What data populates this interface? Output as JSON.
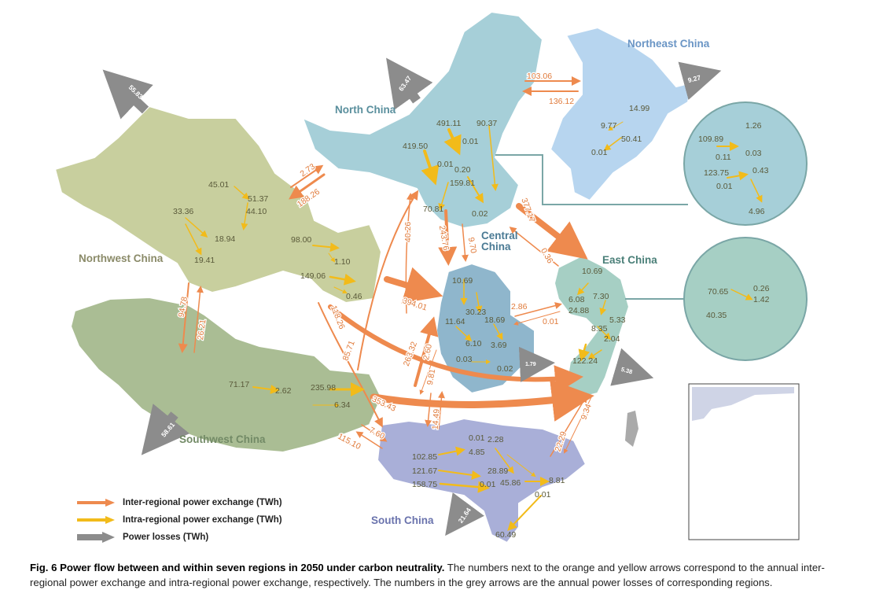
{
  "regions": {
    "northwest": "Northwest China",
    "north": "North China",
    "northeast": "Northeast China",
    "central": "Central China",
    "east": "East China",
    "southwest": "Southwest China",
    "south": "South China"
  },
  "losses": {
    "northwest": "55.83",
    "north": "63.47",
    "northeast": "9.27",
    "central": "1.79",
    "east": "5.38",
    "southwest": "58.61",
    "south": "21.64"
  },
  "inter_flows": {
    "nw_to_n": "2.73",
    "n_to_nw": "188.26",
    "n_to_ne": "103.06",
    "ne_to_n": "136.12",
    "n_to_e": "377.17",
    "e_to_n": "0.36",
    "n_to_c_a": "243.76",
    "n_to_c_b": "9.70",
    "c_to_n": "40.26",
    "nw_to_c": "394.01",
    "c_to_e": "2.86",
    "e_to_c": "0.01",
    "nw_to_sw": "94.78",
    "sw_to_nw": "26.21",
    "nw_to_s": "118.26",
    "sw_to_n": "85.71",
    "sw_to_c": "263.32",
    "c_to_sw": "2.60",
    "sw_to_e": "353.43",
    "sw_to_s": "7.60",
    "s_to_sw": "115.10",
    "c_to_s": "9.81",
    "s_to_c": "14.49",
    "s_to_e": "22.29",
    "e_to_s": "9.34"
  },
  "intra_flows": {
    "nw": [
      "45.01",
      "51.37",
      "44.10",
      "33.36",
      "18.94",
      "19.41",
      "98.00",
      "1.10",
      "149.06",
      "0.46"
    ],
    "n": [
      "491.11",
      "90.37",
      "419.50",
      "0.01",
      "0.01",
      "0.20",
      "159.81",
      "70.81",
      "0.02"
    ],
    "ne": [
      "14.99",
      "9.77",
      "50.41",
      "0.01"
    ],
    "n_inset": [
      "1.26",
      "109.89",
      "0.11",
      "0.03",
      "123.75",
      "0.43",
      "0.01",
      "4.96"
    ],
    "c": [
      "10.69",
      "30.23",
      "11.64",
      "18.69",
      "6.10",
      "3.69",
      "0.03",
      "0.02"
    ],
    "e": [
      "10.69",
      "6.08",
      "7.30",
      "24.88",
      "5.33",
      "8.35",
      "2.04",
      "122.24"
    ],
    "e_inset": [
      "70.65",
      "0.26",
      "1.42",
      "40.35"
    ],
    "sw": [
      "71.17",
      "2.62",
      "235.98",
      "6.34"
    ],
    "s": [
      "0.01",
      "2.28",
      "102.85",
      "4.85",
      "121.67",
      "28.89",
      "158.75",
      "0.01",
      "45.86",
      "8.81",
      "0.01",
      "60.49"
    ]
  },
  "legend": {
    "inter": "Inter-regional power exchange (TWh)",
    "intra": "Intra-regional power exchange (TWh)",
    "loss": "Power losses (TWh)"
  },
  "colors": {
    "inter": "#ee8a4e",
    "intra": "#f2bb1a",
    "loss": "#8c8c8c",
    "northwest": "#c8cf9e",
    "southwest": "#aabd94",
    "north": "#a6cfd8",
    "northeast": "#b7d5ef",
    "central": "#8fb6cc",
    "east": "#a6cfc4",
    "south": "#a9afd8"
  },
  "caption": {
    "lead": "Fig. 6 Power flow between and within seven regions in 2050 under carbon neutrality.",
    "body": " The numbers next to the orange and yellow arrows correspond to the annual inter-regional power exchange and intra-regional power exchange, respectively. The numbers in the grey arrows are the annual power losses of corresponding regions."
  }
}
